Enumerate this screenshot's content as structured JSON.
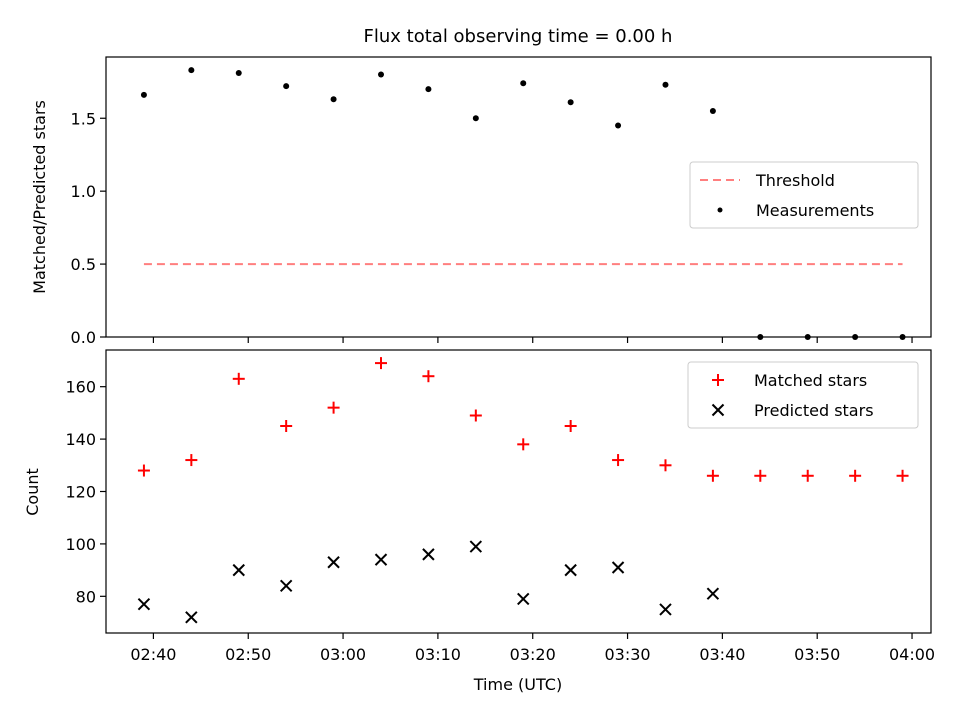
{
  "chart_data": [
    {
      "type": "scatter",
      "title": "Flux total observing time = 0.00 h",
      "xlabel": "",
      "ylabel": "Matched/Predicted stars",
      "xlim": [
        "02:35",
        "04:02"
      ],
      "ylim": [
        0,
        1.92
      ],
      "yticks": [
        "0.0",
        "0.5",
        "1.0",
        "1.5"
      ],
      "ytick_values": [
        0,
        0.5,
        1.0,
        1.5
      ],
      "legend_position": "center-right",
      "series": [
        {
          "name": "Threshold",
          "kind": "line",
          "style": "dashed",
          "color": "#ff7f7f",
          "x": [
            "02:39",
            "03:59"
          ],
          "y": [
            0.5,
            0.5
          ]
        },
        {
          "name": "Measurements",
          "kind": "scatter",
          "marker": "dot",
          "color": "#000000",
          "x": [
            "02:39",
            "02:44",
            "02:49",
            "02:54",
            "02:59",
            "03:04",
            "03:09",
            "03:14",
            "03:19",
            "03:24",
            "03:29",
            "03:34",
            "03:39",
            "03:44",
            "03:49",
            "03:54",
            "03:59"
          ],
          "y": [
            1.66,
            1.83,
            1.81,
            1.72,
            1.63,
            1.8,
            1.7,
            1.5,
            1.74,
            1.61,
            1.45,
            1.73,
            1.55,
            0,
            0,
            0,
            0
          ]
        }
      ]
    },
    {
      "type": "scatter",
      "title": "",
      "xlabel": "Time (UTC)",
      "ylabel": "Count",
      "xlim": [
        "02:35",
        "04:02"
      ],
      "ylim": [
        66,
        174
      ],
      "xticks": [
        "02:40",
        "02:50",
        "03:00",
        "03:10",
        "03:20",
        "03:30",
        "03:40",
        "03:50",
        "04:00"
      ],
      "yticks": [
        "80",
        "100",
        "120",
        "140",
        "160"
      ],
      "ytick_values": [
        80,
        100,
        120,
        140,
        160
      ],
      "legend_position": "top-right",
      "series": [
        {
          "name": "Matched stars",
          "kind": "scatter",
          "marker": "plus",
          "color": "#ff0000",
          "x": [
            "02:39",
            "02:44",
            "02:49",
            "02:54",
            "02:59",
            "03:04",
            "03:09",
            "03:14",
            "03:19",
            "03:24",
            "03:29",
            "03:34",
            "03:39",
            "03:44",
            "03:49",
            "03:54",
            "03:59"
          ],
          "y": [
            128,
            132,
            163,
            145,
            152,
            169,
            164,
            149,
            138,
            145,
            132,
            130,
            126,
            126,
            126,
            126,
            126
          ]
        },
        {
          "name": "Predicted stars",
          "kind": "scatter",
          "marker": "x",
          "color": "#000000",
          "x": [
            "02:39",
            "02:44",
            "02:49",
            "02:54",
            "02:59",
            "03:04",
            "03:09",
            "03:14",
            "03:19",
            "03:24",
            "03:29",
            "03:34",
            "03:39"
          ],
          "y": [
            77,
            72,
            90,
            84,
            93,
            94,
            96,
            99,
            79,
            90,
            91,
            75,
            81
          ]
        }
      ]
    }
  ]
}
